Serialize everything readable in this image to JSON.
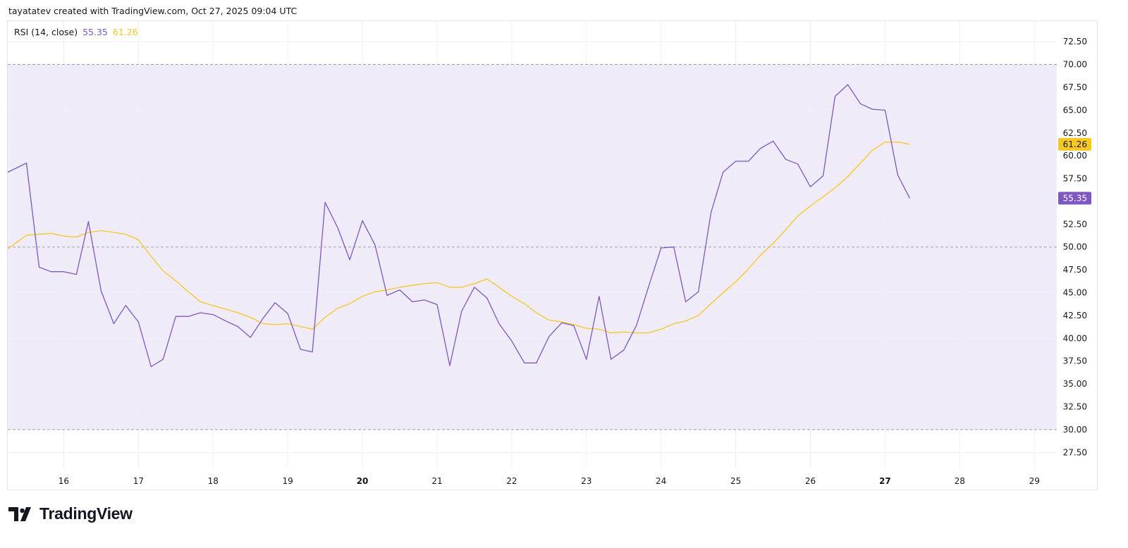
{
  "credit": "tayatatev created with TradingView.com, Oct 27, 2025 09:04 UTC",
  "brand": {
    "name": "TradingView",
    "logo_icon": "tradingview-logo-icon"
  },
  "legend": {
    "label": "RSI (14, close)",
    "rsi_value": "55.35",
    "ma_value": "61.26"
  },
  "colors": {
    "rsi_line": "#7e57c2",
    "ma_line": "#f7c724",
    "band_fill": "#f0ebf9",
    "band_border": "#8a8f9c",
    "grid": "#eef0f3",
    "rsi_badge": "#7e57c2",
    "ma_badge": "#f7c724"
  },
  "chart_data": {
    "type": "line",
    "title": "RSI (14, close)",
    "xlabel": "",
    "ylabel": "",
    "ylim": [
      25.75,
      74.75
    ],
    "xlim": [
      15.25,
      29.3
    ],
    "grid": true,
    "legend_position": "top-left",
    "y_ticks": [
      "27.50",
      "30.00",
      "32.50",
      "35.00",
      "37.50",
      "40.00",
      "42.50",
      "45.00",
      "47.50",
      "50.00",
      "52.50",
      "55.00",
      "57.50",
      "60.00",
      "62.50",
      "65.00",
      "67.50",
      "70.00",
      "72.50"
    ],
    "x_ticks": [
      {
        "value": 16,
        "label": "16",
        "bold": false
      },
      {
        "value": 17,
        "label": "17",
        "bold": false
      },
      {
        "value": 18,
        "label": "18",
        "bold": false
      },
      {
        "value": 19,
        "label": "19",
        "bold": false
      },
      {
        "value": 20,
        "label": "20",
        "bold": true
      },
      {
        "value": 21,
        "label": "21",
        "bold": false
      },
      {
        "value": 22,
        "label": "22",
        "bold": false
      },
      {
        "value": 23,
        "label": "23",
        "bold": false
      },
      {
        "value": 24,
        "label": "24",
        "bold": false
      },
      {
        "value": 25,
        "label": "25",
        "bold": false
      },
      {
        "value": 26,
        "label": "26",
        "bold": false
      },
      {
        "value": 27,
        "label": "27",
        "bold": true
      },
      {
        "value": 28,
        "label": "28",
        "bold": false
      },
      {
        "value": 29,
        "label": "29",
        "bold": false
      }
    ],
    "bands": {
      "upper": 70,
      "middle": 50,
      "lower": 30
    },
    "last_values": [
      {
        "series": "RSI",
        "label": "55.35"
      },
      {
        "series": "MA",
        "label": "61.26"
      }
    ],
    "series": [
      {
        "name": "RSI",
        "x": [
          15.25,
          15.5,
          15.67,
          15.83,
          16.0,
          16.17,
          16.33,
          16.5,
          16.67,
          16.83,
          17.0,
          17.17,
          17.33,
          17.5,
          17.67,
          17.83,
          18.0,
          18.17,
          18.33,
          18.5,
          18.67,
          18.83,
          19.0,
          19.17,
          19.33,
          19.5,
          19.67,
          19.83,
          20.0,
          20.17,
          20.33,
          20.5,
          20.67,
          20.83,
          21.0,
          21.17,
          21.33,
          21.5,
          21.67,
          21.83,
          22.0,
          22.17,
          22.33,
          22.5,
          22.67,
          22.83,
          23.0,
          23.17,
          23.33,
          23.5,
          23.67,
          23.83,
          24.0,
          24.17,
          24.33,
          24.5,
          24.67,
          24.83,
          25.0,
          25.17,
          25.33,
          25.5,
          25.67,
          25.83,
          26.0,
          26.17,
          26.33,
          26.5,
          26.67,
          26.83,
          27.0,
          27.17,
          27.33
        ],
        "values": [
          58.2,
          59.2,
          47.8,
          47.3,
          47.3,
          47.0,
          52.8,
          45.2,
          41.6,
          43.6,
          41.8,
          36.9,
          37.7,
          42.4,
          42.4,
          42.8,
          42.6,
          41.9,
          41.3,
          40.1,
          42.2,
          43.9,
          42.7,
          38.8,
          38.5,
          54.9,
          52.1,
          48.6,
          52.9,
          50.2,
          44.7,
          45.3,
          44.0,
          44.2,
          43.7,
          37.0,
          43.0,
          45.6,
          44.4,
          41.6,
          39.7,
          37.3,
          37.3,
          40.2,
          41.7,
          41.4,
          37.7,
          44.6,
          37.7,
          38.7,
          41.4,
          45.6,
          49.9,
          50.0,
          44.0,
          45.1,
          53.8,
          58.2,
          59.4,
          59.4,
          60.8,
          61.6,
          59.6,
          59.1,
          56.6,
          57.8,
          66.5,
          67.8,
          65.7,
          65.1,
          65.0,
          57.9,
          55.35
        ]
      },
      {
        "name": "MA",
        "x": [
          15.25,
          15.5,
          15.83,
          16.0,
          16.17,
          16.33,
          16.5,
          16.67,
          16.83,
          17.0,
          17.17,
          17.33,
          17.5,
          17.67,
          17.83,
          18.0,
          18.17,
          18.33,
          18.5,
          18.67,
          18.83,
          19.0,
          19.17,
          19.33,
          19.5,
          19.67,
          19.83,
          20.0,
          20.17,
          20.33,
          20.5,
          20.67,
          20.83,
          21.0,
          21.17,
          21.33,
          21.5,
          21.67,
          21.83,
          22.0,
          22.17,
          22.33,
          22.5,
          22.67,
          22.83,
          23.0,
          23.17,
          23.33,
          23.5,
          23.67,
          23.83,
          24.0,
          24.17,
          24.33,
          24.5,
          24.67,
          24.83,
          25.0,
          25.17,
          25.33,
          25.5,
          25.67,
          25.83,
          26.0,
          26.17,
          26.33,
          26.5,
          26.67,
          26.83,
          27.0,
          27.17,
          27.33
        ],
        "values": [
          49.8,
          51.3,
          51.5,
          51.2,
          51.1,
          51.6,
          51.8,
          51.6,
          51.4,
          50.8,
          49.0,
          47.4,
          46.3,
          45.1,
          44.0,
          43.6,
          43.2,
          42.8,
          42.3,
          41.6,
          41.5,
          41.6,
          41.3,
          41.0,
          42.3,
          43.3,
          43.8,
          44.6,
          45.1,
          45.3,
          45.6,
          45.8,
          46.0,
          46.1,
          45.6,
          45.6,
          46.0,
          46.5,
          45.6,
          44.6,
          43.8,
          42.8,
          42.0,
          41.8,
          41.5,
          41.1,
          41.0,
          40.6,
          40.7,
          40.6,
          40.6,
          41.0,
          41.6,
          41.9,
          42.5,
          43.8,
          45.0,
          46.2,
          47.6,
          49.1,
          50.4,
          51.9,
          53.4,
          54.5,
          55.5,
          56.5,
          57.7,
          59.2,
          60.6,
          61.5,
          61.5,
          61.26
        ]
      }
    ]
  }
}
